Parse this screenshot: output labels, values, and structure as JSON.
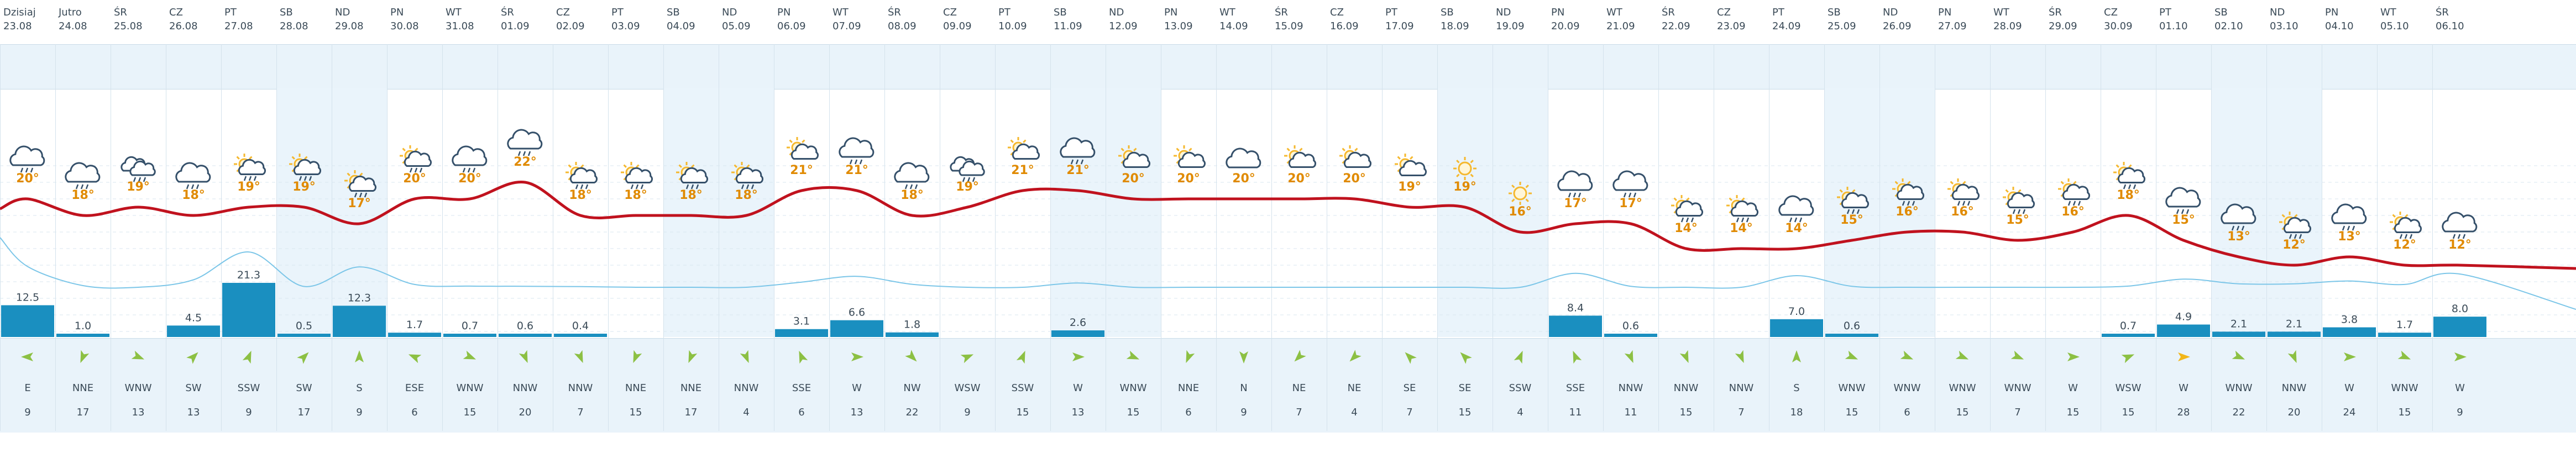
{
  "days": [
    {
      "name": "Dzisiaj",
      "date": "23.08",
      "temp": "20°",
      "precip": "12.5",
      "wind_dir": "E",
      "wind_speed": "9",
      "weekend": false,
      "icon": "cloud-rain-icon"
    },
    {
      "name": "Jutro",
      "date": "24.08",
      "temp": "18°",
      "precip": "1.0",
      "wind_dir": "NNE",
      "wind_speed": "17",
      "weekend": false,
      "icon": "cloud-rain-icon"
    },
    {
      "name": "ŚR",
      "date": "25.08",
      "temp": "19°",
      "precip": "",
      "wind_dir": "WNW",
      "wind_speed": "13",
      "weekend": false,
      "icon": "partly-cloudy-rain-icon"
    },
    {
      "name": "CZ",
      "date": "26.08",
      "temp": "18°",
      "precip": "4.5",
      "wind_dir": "SW",
      "wind_speed": "13",
      "weekend": false,
      "icon": "cloud-rain-icon"
    },
    {
      "name": "PT",
      "date": "27.08",
      "temp": "19°",
      "precip": "21.3",
      "wind_dir": "SSW",
      "wind_speed": "9",
      "weekend": false,
      "icon": "sun-cloud-rain-icon"
    },
    {
      "name": "SB",
      "date": "28.08",
      "temp": "19°",
      "precip": "0.5",
      "wind_dir": "SW",
      "wind_speed": "17",
      "weekend": true,
      "icon": "sun-cloud-rain-icon"
    },
    {
      "name": "ND",
      "date": "29.08",
      "temp": "17°",
      "precip": "12.3",
      "wind_dir": "S",
      "wind_speed": "9",
      "weekend": true,
      "icon": "sun-cloud-rain-icon"
    },
    {
      "name": "PN",
      "date": "30.08",
      "temp": "20°",
      "precip": "1.7",
      "wind_dir": "ESE",
      "wind_speed": "6",
      "weekend": false,
      "icon": "sun-cloud-rain-icon"
    },
    {
      "name": "WT",
      "date": "31.08",
      "temp": "20°",
      "precip": "0.7",
      "wind_dir": "WNW",
      "wind_speed": "15",
      "weekend": false,
      "icon": "cloud-rain-icon"
    },
    {
      "name": "ŚR",
      "date": "01.09",
      "temp": "22°",
      "precip": "0.6",
      "wind_dir": "NNW",
      "wind_speed": "20",
      "weekend": false,
      "icon": "cloud-rain-icon"
    },
    {
      "name": "CZ",
      "date": "02.09",
      "temp": "18°",
      "precip": "0.4",
      "wind_dir": "NNW",
      "wind_speed": "7",
      "weekend": false,
      "icon": "sun-cloud-rain-icon"
    },
    {
      "name": "PT",
      "date": "03.09",
      "temp": "18°",
      "precip": "",
      "wind_dir": "NNE",
      "wind_speed": "15",
      "weekend": false,
      "icon": "sun-cloud-rain-icon"
    },
    {
      "name": "SB",
      "date": "04.09",
      "temp": "18°",
      "precip": "",
      "wind_dir": "NNE",
      "wind_speed": "17",
      "weekend": true,
      "icon": "sun-cloud-rain-icon"
    },
    {
      "name": "ND",
      "date": "05.09",
      "temp": "18°",
      "precip": "",
      "wind_dir": "NNW",
      "wind_speed": "4",
      "weekend": true,
      "icon": "sun-cloud-rain-icon"
    },
    {
      "name": "PN",
      "date": "06.09",
      "temp": "21°",
      "precip": "3.1",
      "wind_dir": "SSE",
      "wind_speed": "6",
      "weekend": false,
      "icon": "sun-cloud-icon"
    },
    {
      "name": "WT",
      "date": "07.09",
      "temp": "21°",
      "precip": "6.6",
      "wind_dir": "W",
      "wind_speed": "13",
      "weekend": false,
      "icon": "cloud-rain-icon"
    },
    {
      "name": "ŚR",
      "date": "08.09",
      "temp": "18°",
      "precip": "1.8",
      "wind_dir": "NW",
      "wind_speed": "22",
      "weekend": false,
      "icon": "cloud-rain-icon"
    },
    {
      "name": "CZ",
      "date": "09.09",
      "temp": "19°",
      "precip": "",
      "wind_dir": "WSW",
      "wind_speed": "9",
      "weekend": false,
      "icon": "partly-cloudy-rain-icon"
    },
    {
      "name": "PT",
      "date": "10.09",
      "temp": "21°",
      "precip": "",
      "wind_dir": "SSW",
      "wind_speed": "15",
      "weekend": false,
      "icon": "sun-cloud-icon"
    },
    {
      "name": "SB",
      "date": "11.09",
      "temp": "21°",
      "precip": "2.6",
      "wind_dir": "W",
      "wind_speed": "13",
      "weekend": true,
      "icon": "cloud-rain-icon"
    },
    {
      "name": "ND",
      "date": "12.09",
      "temp": "20°",
      "precip": "",
      "wind_dir": "WNW",
      "wind_speed": "15",
      "weekend": true,
      "icon": "sun-cloud-icon"
    },
    {
      "name": "PN",
      "date": "13.09",
      "temp": "20°",
      "precip": "",
      "wind_dir": "NNE",
      "wind_speed": "6",
      "weekend": false,
      "icon": "sun-cloud-icon"
    },
    {
      "name": "WT",
      "date": "14.09",
      "temp": "20°",
      "precip": "",
      "wind_dir": "N",
      "wind_speed": "9",
      "weekend": false,
      "icon": "cloud-icon"
    },
    {
      "name": "ŚR",
      "date": "15.09",
      "temp": "20°",
      "precip": "",
      "wind_dir": "NE",
      "wind_speed": "7",
      "weekend": false,
      "icon": "sun-cloud-icon"
    },
    {
      "name": "CZ",
      "date": "16.09",
      "temp": "20°",
      "precip": "",
      "wind_dir": "NE",
      "wind_speed": "4",
      "weekend": false,
      "icon": "sun-cloud-icon"
    },
    {
      "name": "PT",
      "date": "17.09",
      "temp": "19°",
      "precip": "",
      "wind_dir": "SE",
      "wind_speed": "7",
      "weekend": false,
      "icon": "sun-cloud-icon"
    },
    {
      "name": "SB",
      "date": "18.09",
      "temp": "19°",
      "precip": "",
      "wind_dir": "SE",
      "wind_speed": "15",
      "weekend": true,
      "icon": "sun-icon"
    },
    {
      "name": "ND",
      "date": "19.09",
      "temp": "16°",
      "precip": "",
      "wind_dir": "SSW",
      "wind_speed": "4",
      "weekend": true,
      "icon": "sun-icon"
    },
    {
      "name": "PN",
      "date": "20.09",
      "temp": "17°",
      "precip": "8.4",
      "wind_dir": "SSE",
      "wind_speed": "11",
      "weekend": false,
      "icon": "cloud-rain-icon"
    },
    {
      "name": "WT",
      "date": "21.09",
      "temp": "17°",
      "precip": "0.6",
      "wind_dir": "NNW",
      "wind_speed": "11",
      "weekend": false,
      "icon": "cloud-rain-icon"
    },
    {
      "name": "ŚR",
      "date": "22.09",
      "temp": "14°",
      "precip": "",
      "wind_dir": "NNW",
      "wind_speed": "15",
      "weekend": false,
      "icon": "sun-cloud-rain-icon"
    },
    {
      "name": "CZ",
      "date": "23.09",
      "temp": "14°",
      "precip": "",
      "wind_dir": "NNW",
      "wind_speed": "7",
      "weekend": false,
      "icon": "sun-cloud-rain-icon"
    },
    {
      "name": "PT",
      "date": "24.09",
      "temp": "14°",
      "precip": "7.0",
      "wind_dir": "S",
      "wind_speed": "18",
      "weekend": false,
      "icon": "cloud-rain-icon"
    },
    {
      "name": "SB",
      "date": "25.09",
      "temp": "15°",
      "precip": "0.6",
      "wind_dir": "WNW",
      "wind_speed": "15",
      "weekend": true,
      "icon": "sun-cloud-rain-icon"
    },
    {
      "name": "ND",
      "date": "26.09",
      "temp": "16°",
      "precip": "",
      "wind_dir": "WNW",
      "wind_speed": "6",
      "weekend": true,
      "icon": "sun-cloud-rain-icon"
    },
    {
      "name": "PN",
      "date": "27.09",
      "temp": "16°",
      "precip": "",
      "wind_dir": "WNW",
      "wind_speed": "15",
      "weekend": false,
      "icon": "sun-cloud-rain-icon"
    },
    {
      "name": "WT",
      "date": "28.09",
      "temp": "15°",
      "precip": "",
      "wind_dir": "WNW",
      "wind_speed": "7",
      "weekend": false,
      "icon": "sun-cloud-rain-icon"
    },
    {
      "name": "ŚR",
      "date": "29.09",
      "temp": "16°",
      "precip": "",
      "wind_dir": "W",
      "wind_speed": "15",
      "weekend": false,
      "icon": "sun-cloud-rain-icon"
    },
    {
      "name": "CZ",
      "date": "30.09",
      "temp": "18°",
      "precip": "0.7",
      "wind_dir": "WSW",
      "wind_speed": "15",
      "weekend": false,
      "icon": "sun-cloud-rain-icon"
    },
    {
      "name": "PT",
      "date": "01.10",
      "temp": "15°",
      "precip": "4.9",
      "wind_dir": "W",
      "wind_speed": "28",
      "weekend": false,
      "icon": "cloud-rain-icon"
    },
    {
      "name": "SB",
      "date": "02.10",
      "temp": "13°",
      "precip": "2.1",
      "wind_dir": "WNW",
      "wind_speed": "22",
      "weekend": true,
      "icon": "cloud-rain-icon"
    },
    {
      "name": "ND",
      "date": "03.10",
      "temp": "12°",
      "precip": "2.1",
      "wind_dir": "NNW",
      "wind_speed": "20",
      "weekend": true,
      "icon": "sun-cloud-rain-icon"
    },
    {
      "name": "PN",
      "date": "04.10",
      "temp": "13°",
      "precip": "3.8",
      "wind_dir": "W",
      "wind_speed": "24",
      "weekend": false,
      "icon": "cloud-rain-icon"
    },
    {
      "name": "WT",
      "date": "05.10",
      "temp": "12°",
      "precip": "1.7",
      "wind_dir": "WNW",
      "wind_speed": "15",
      "weekend": false,
      "icon": "sun-cloud-rain-icon"
    },
    {
      "name": "ŚR",
      "date": "06.10",
      "temp": "12°",
      "precip": "8.0",
      "wind_dir": "W",
      "wind_speed": "9",
      "weekend": false,
      "icon": "cloud-rain-icon"
    }
  ],
  "colors": {
    "temp_line": "#c0121e",
    "temp_label": "#e08a00",
    "precip_bar": "#1a8fc0",
    "second_line": "#7cc6e8",
    "wind_arrow": "#8cc043",
    "wind_arrow_strong": "#f2b619",
    "header_bg": "#e9f3fa",
    "weekend_bg": "#eaf4fb",
    "icon_stroke": "#35506a",
    "sun": "#f5b82e"
  }
}
